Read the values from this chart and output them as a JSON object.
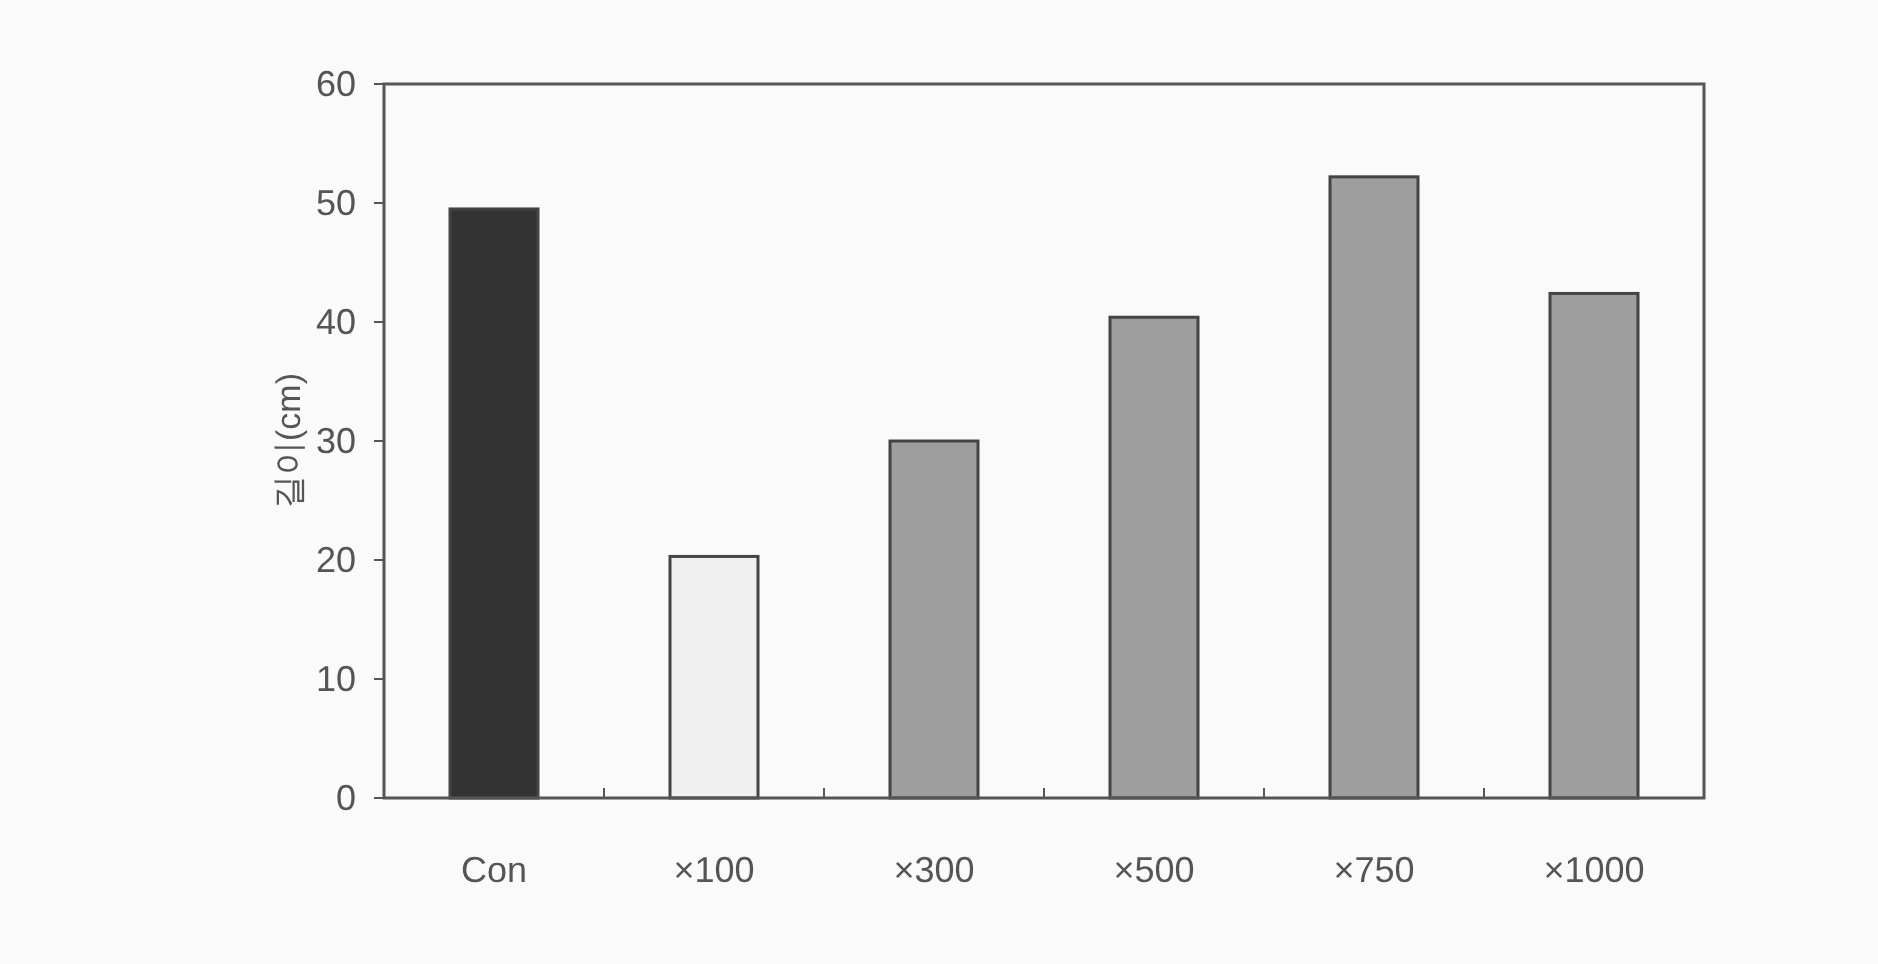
{
  "chart_data": {
    "type": "bar",
    "ylabel": "길이(cm)",
    "categories": [
      "Con",
      "×100",
      "×300",
      "×500",
      "×750",
      "×1000"
    ],
    "values": [
      49.5,
      20.3,
      30.0,
      40.4,
      52.2,
      42.4
    ],
    "colors": [
      "#333333",
      "#f0f0f0",
      "#9e9e9e",
      "#9e9e9e",
      "#9e9e9e",
      "#9e9e9e"
    ],
    "ylim": [
      0,
      60
    ],
    "yticks": [
      0,
      10,
      20,
      30,
      40,
      50,
      60
    ],
    "grid": false
  }
}
